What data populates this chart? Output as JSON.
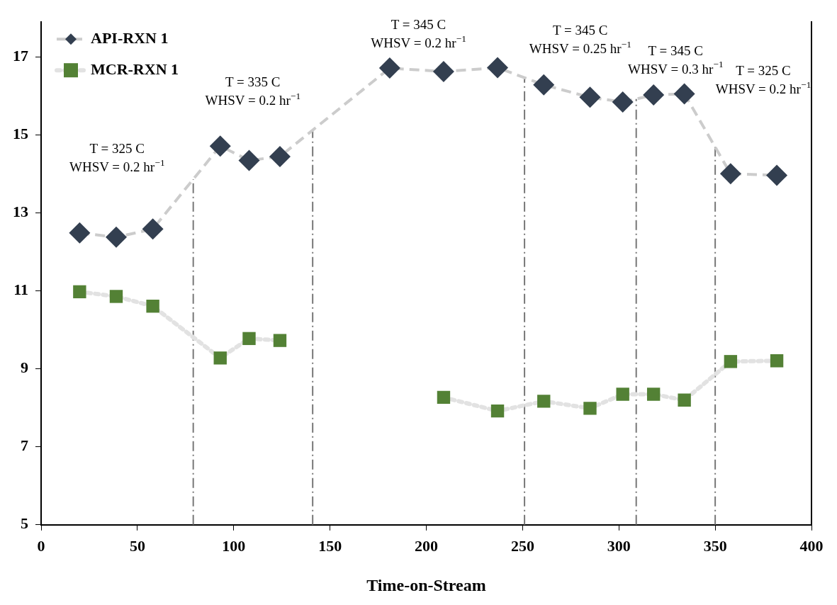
{
  "chart_data": {
    "type": "line",
    "xlabel": "Time-on-Stream",
    "x": [
      20,
      39,
      58,
      93,
      108,
      124,
      181,
      209,
      237,
      261,
      285,
      302,
      318,
      334,
      358,
      382
    ],
    "series": [
      {
        "name": "API-RXN 1",
        "color": "#333f50",
        "marker": "diamond",
        "line_style": "dashed",
        "values": [
          12.49,
          12.38,
          12.59,
          14.72,
          14.35,
          14.45,
          16.72,
          16.63,
          16.73,
          16.29,
          15.97,
          15.85,
          16.03,
          16.06,
          14.01,
          13.97
        ]
      },
      {
        "name": "MCR-RXN 1",
        "color": "#538135",
        "marker": "square",
        "line_style": "dotted",
        "values": [
          10.98,
          10.86,
          10.61,
          9.28,
          9.78,
          9.73,
          null,
          8.27,
          7.92,
          8.17,
          7.99,
          8.35,
          8.35,
          8.2,
          9.19,
          9.21
        ]
      }
    ],
    "xlim": [
      0,
      400
    ],
    "xticks": [
      0,
      50,
      100,
      150,
      200,
      250,
      300,
      350,
      400
    ],
    "ylim": [
      5,
      17.9
    ],
    "yticks": [
      5,
      7,
      9,
      11,
      13,
      15,
      17
    ],
    "grid": false,
    "legend": "top left",
    "ref_lines": [
      {
        "axis": "x",
        "value": 79,
        "color": "#777777",
        "line_style": "dashdot"
      },
      {
        "axis": "x",
        "value": 141,
        "color": "#777777",
        "line_style": "dashdot"
      },
      {
        "axis": "x",
        "value": 251,
        "color": "#777777",
        "line_style": "dashdot"
      },
      {
        "axis": "x",
        "value": 309,
        "color": "#777777",
        "line_style": "dashdot"
      },
      {
        "axis": "x",
        "value": 350,
        "color": "#777777",
        "line_style": "dashdot"
      }
    ],
    "annotations": [
      "T = 325 C\nWHSV = 0.2 hr$^{−1}$",
      "T = 335 C\nWHSV = 0.2 hr$^{−1}$",
      "T = 345 C\nWHSV = 0.2 hr$^{−1}$",
      "T = 345 C\nWHSV = 0.25 hr$^{−1}$",
      "T = 345 C\nWHSV = 0.3 hr$^{−1}$",
      "T = 325 C\nWHSV = 0.2 hr$^{−1}$"
    ]
  }
}
